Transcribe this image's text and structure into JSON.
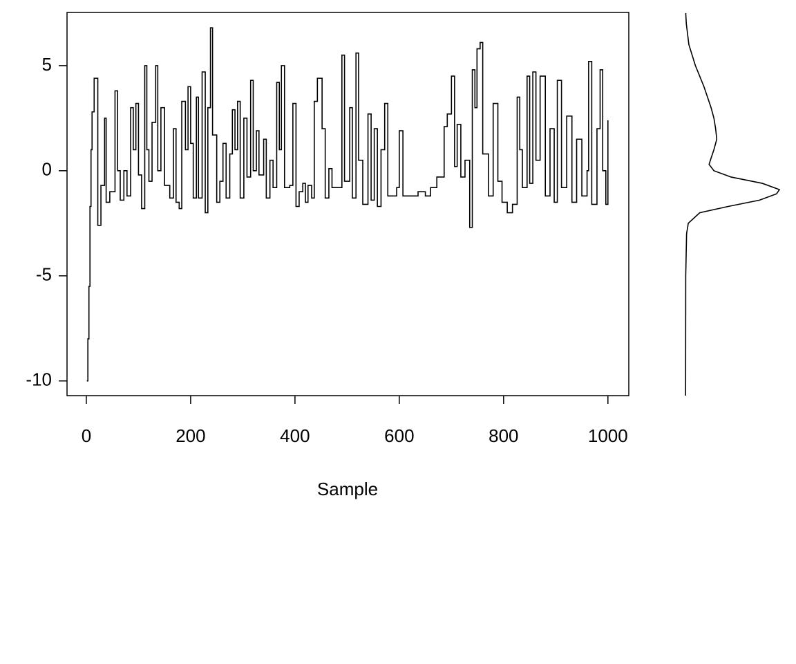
{
  "chart_data": [
    {
      "type": "line",
      "xlabel": "Sample",
      "x": [
        1,
        3,
        5,
        7,
        9,
        11,
        15,
        22,
        28,
        35,
        38,
        45,
        55,
        60,
        65,
        72,
        78,
        85,
        90,
        95,
        100,
        106,
        112,
        116,
        120,
        126,
        133,
        137,
        143,
        150,
        160,
        167,
        172,
        178,
        183,
        190,
        195,
        200,
        205,
        211,
        215,
        222,
        228,
        233,
        238,
        242,
        250,
        256,
        262,
        268,
        275,
        280,
        285,
        290,
        295,
        302,
        308,
        315,
        320,
        326,
        331,
        340,
        345,
        352,
        358,
        365,
        370,
        374,
        380,
        390,
        396,
        402,
        408,
        415,
        420,
        425,
        432,
        437,
        443,
        452,
        458,
        465,
        471,
        490,
        495,
        505,
        510,
        517,
        522,
        530,
        540,
        546,
        552,
        558,
        565,
        572,
        578,
        595,
        600,
        607,
        621,
        636,
        650,
        660,
        672,
        686,
        692,
        700,
        706,
        711,
        718,
        726,
        735,
        740,
        745,
        749,
        755,
        760,
        771,
        780,
        789,
        797,
        807,
        817,
        826,
        831,
        836,
        845,
        850,
        856,
        862,
        870,
        880,
        889,
        897,
        903,
        911,
        921,
        931,
        940,
        950,
        960,
        963,
        969,
        979,
        985,
        990,
        996,
        1000
      ],
      "values": [
        -10,
        -8,
        -5.5,
        -1.7,
        1,
        2.8,
        4.4,
        -2.6,
        -0.7,
        2.5,
        -1.5,
        -1,
        3.8,
        0,
        -1.4,
        0,
        -1.2,
        3,
        1,
        3.2,
        -0.2,
        -1.8,
        5,
        1,
        -0.5,
        2.3,
        5,
        0,
        3,
        -0.7,
        -1.3,
        2,
        -1.5,
        -1.8,
        3.3,
        1,
        4,
        1.3,
        -1.3,
        3.5,
        -1.3,
        4.7,
        -2,
        3,
        6.8,
        1.7,
        -1.5,
        -0.5,
        1.3,
        -1.3,
        0.8,
        2.9,
        1,
        3.3,
        -1.3,
        2.5,
        -0.3,
        4.3,
        0,
        1.9,
        -0.2,
        1.5,
        -1.3,
        0.5,
        -0.8,
        4.2,
        1,
        5,
        -0.8,
        -0.7,
        3.2,
        -1.7,
        -1,
        -0.6,
        -1.5,
        -0.7,
        -1.3,
        3.3,
        4.4,
        2,
        -1.3,
        0.1,
        -0.8,
        5.5,
        -0.5,
        3,
        -1.3,
        5.6,
        0.5,
        -1.6,
        2.7,
        -1.4,
        2,
        -1.7,
        1,
        3.2,
        -1.2,
        -0.8,
        1.9,
        -1.2,
        -1.2,
        -1,
        -1.2,
        -0.8,
        -0.3,
        2.1,
        2.7,
        4.5,
        0.2,
        2.2,
        -0.3,
        0.5,
        -2.7,
        4.8,
        3,
        5.8,
        6.1,
        0.8,
        -1.2,
        3.2,
        -0.5,
        -1.5,
        -2,
        -1.6,
        3.5,
        1,
        -0.8,
        4.5,
        -0.6,
        4.7,
        0.5,
        4.5,
        -1.2,
        2,
        -1.5,
        4.3,
        -0.8,
        2.6,
        -1.5,
        1.5,
        -1.2,
        0,
        5.2,
        -1.6,
        2,
        4.8,
        0,
        -1.6,
        2.4
      ],
      "color": "#000000",
      "xlim": [
        -37,
        1040
      ],
      "xticks": [
        0,
        200,
        400,
        600,
        800,
        1000
      ],
      "ylim": [
        -10.7,
        7.53
      ],
      "yticks": [
        -10,
        -5,
        0,
        5
      ]
    },
    {
      "type": "density",
      "y": [
        -10.7,
        -5,
        -3,
        -2.5,
        -2,
        -1.7,
        -1.4,
        -1.1,
        -0.9,
        -0.6,
        -0.3,
        0,
        0.3,
        0.6,
        1,
        1.5,
        2,
        2.5,
        3,
        4,
        5,
        6,
        7,
        7.5
      ],
      "values": [
        0.0005,
        0.001,
        0.004,
        0.01,
        0.05,
        0.15,
        0.26,
        0.32,
        0.33,
        0.27,
        0.16,
        0.1,
        0.083,
        0.09,
        0.1,
        0.11,
        0.106,
        0.1,
        0.09,
        0.065,
        0.035,
        0.012,
        0.003,
        0.001
      ],
      "color": "#000000",
      "xlim": [
        0,
        0.33
      ],
      "ylim": [
        -10.7,
        7.53
      ]
    }
  ]
}
